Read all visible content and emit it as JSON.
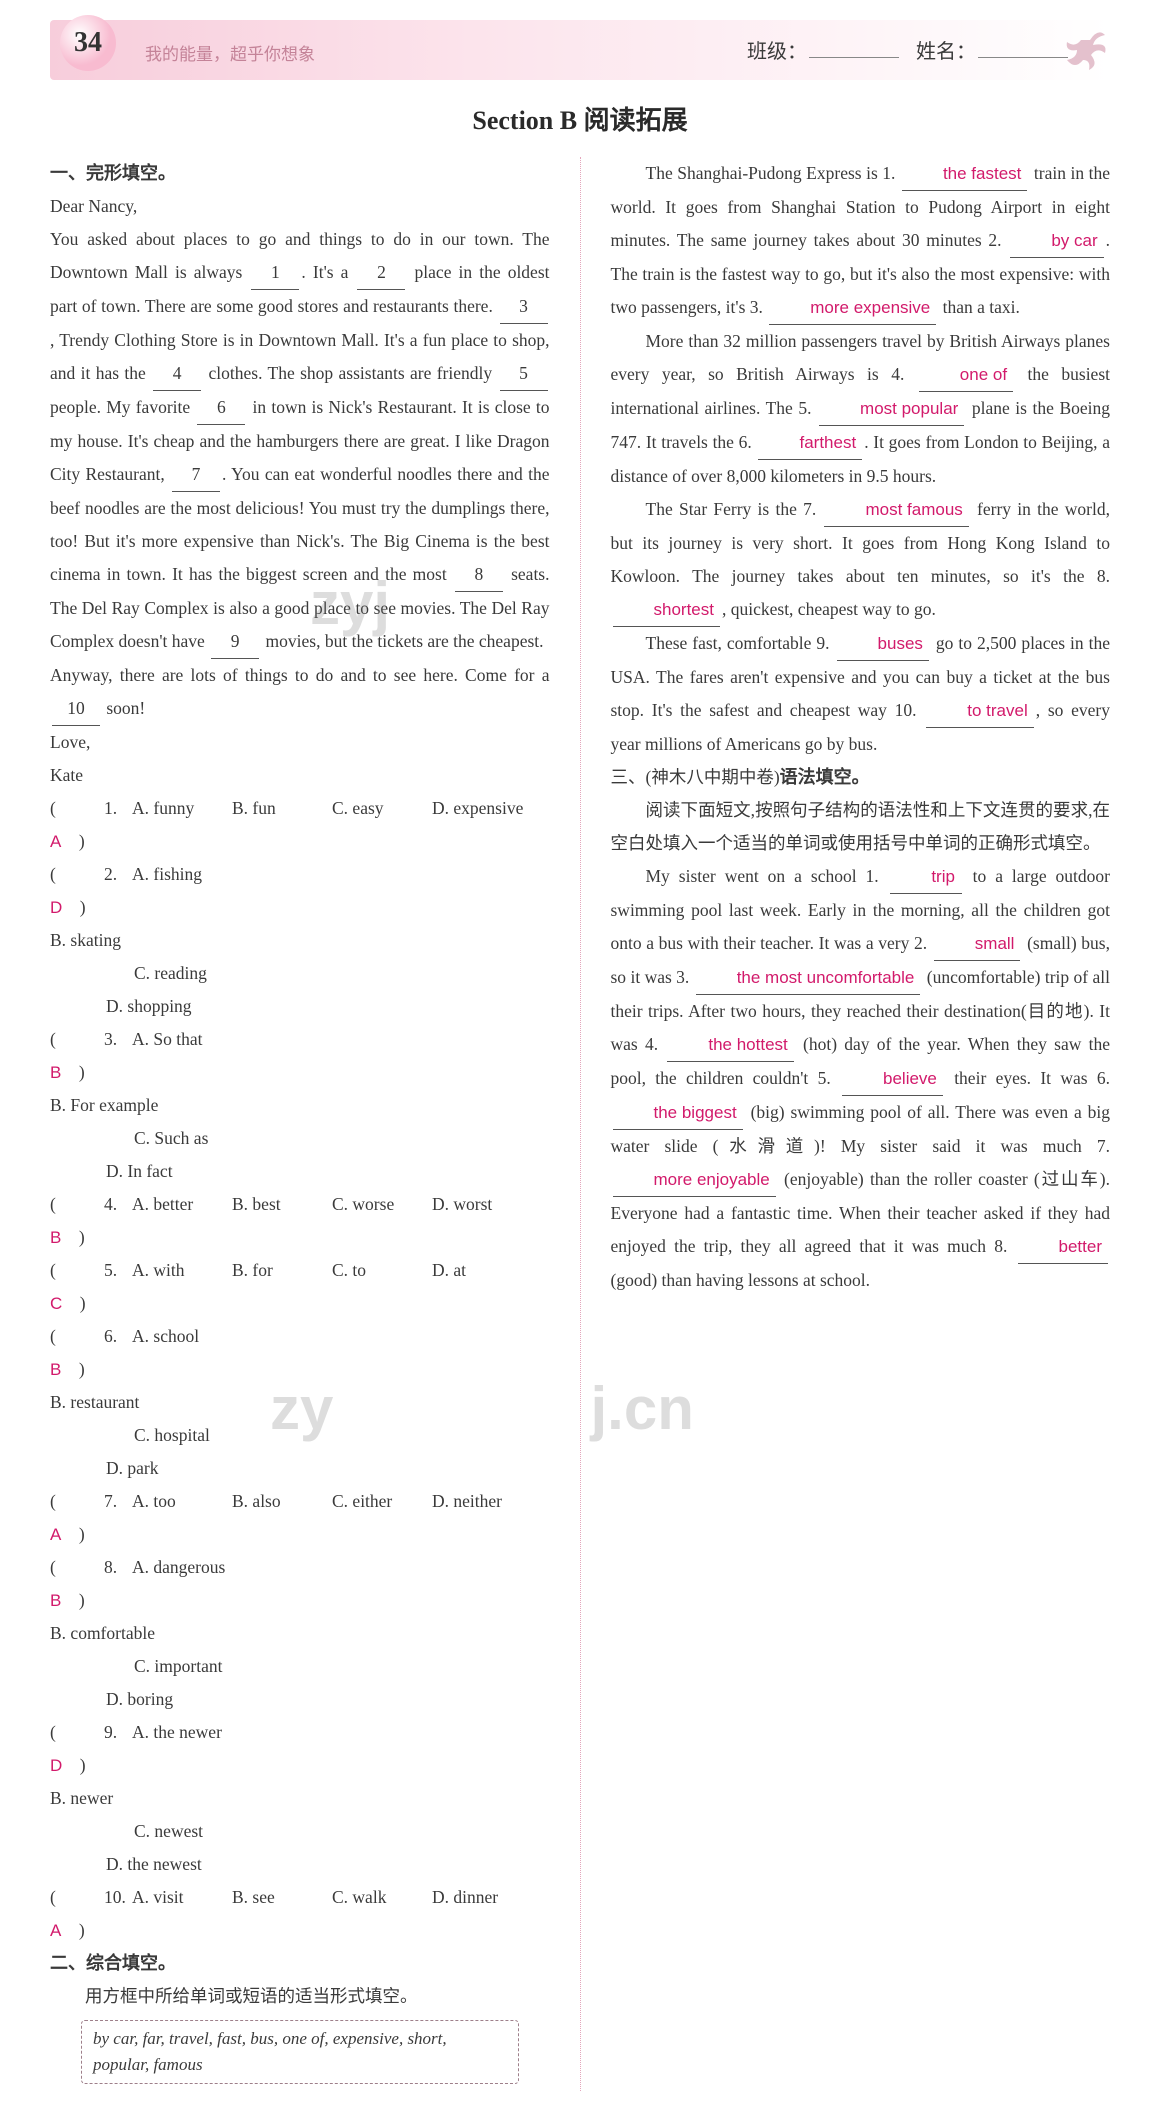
{
  "header": {
    "page_number": "34",
    "motto": "我的能量，超乎你想象",
    "class_label": "班级：",
    "name_label": "姓名："
  },
  "section_title": "Section B 阅读拓展",
  "headings": {
    "h1": "一、完形填空。",
    "h2": "二、综合填空。",
    "h2_sub": "用方框中所给单词或短语的适当形式填空。",
    "h3_prefix": "三、(神木八中期中卷)",
    "h3_bold": "语法填空。",
    "h3_sub1": "阅读下面短文,按照句子结构的语法性和上下文连贯的要求,在空白处填入一个适当的单词或使用括号中单词的正确形式填空。"
  },
  "cloze": {
    "greeting": "Dear Nancy,",
    "p1_a": "You asked about places to go and things to do in our town. The Downtown Mall is always ",
    "b1": "1",
    "p1_b": ". It's a ",
    "b2": "2",
    "p1_c": " place in the oldest part of town. There are some good stores and restaurants there. ",
    "b3": "3",
    "p1_d": ", Trendy Clothing Store is in Downtown Mall. It's a fun place to shop, and it has the ",
    "b4": "4",
    "p1_e": " clothes. The shop assistants are friendly ",
    "b5": "5",
    "p1_f": " people. My favorite ",
    "b6": "6",
    "p1_g": " in town is Nick's Restaurant. It is close to my house. It's cheap and the hamburgers there are great. I like Dragon City Restaurant, ",
    "b7": "7",
    "p1_h": ". You can eat wonderful noodles there and the beef noodles are the most delicious! You must try the dumplings there, too! But it's more expensive than Nick's. The Big Cinema is the best cinema in town. It has the biggest screen and the most ",
    "b8": "8",
    "p1_i": " seats. The Del Ray Complex is also a good place to see movies. The Del Ray Complex doesn't have ",
    "b9": "9",
    "p1_j": " movies, but the tickets are the cheapest.",
    "p2_a": "Anyway, there are lots of things to do and to see here. Come for a ",
    "b10": "10",
    "p2_b": " soon!",
    "love": "Love,",
    "sign": "Kate"
  },
  "choices": [
    {
      "n": "1",
      "ans": "A",
      "opts": [
        "A. funny",
        "B. fun",
        "C. easy",
        "D. expensive"
      ],
      "layout": "narrow"
    },
    {
      "n": "2",
      "ans": "D",
      "opts": [
        "A. fishing",
        "B. skating",
        "C. reading",
        "D. shopping"
      ],
      "layout": "wide"
    },
    {
      "n": "3",
      "ans": "B",
      "opts": [
        "A. So that",
        "B. For example",
        "C. Such as",
        "D. In fact"
      ],
      "layout": "wide"
    },
    {
      "n": "4",
      "ans": "B",
      "opts": [
        "A. better",
        "B. best",
        "C. worse",
        "D. worst"
      ],
      "layout": "narrow"
    },
    {
      "n": "5",
      "ans": "C",
      "opts": [
        "A. with",
        "B. for",
        "C. to",
        "D. at"
      ],
      "layout": "narrow"
    },
    {
      "n": "6",
      "ans": "B",
      "opts": [
        "A. school",
        "B. restaurant",
        "C. hospital",
        "D. park"
      ],
      "layout": "wide"
    },
    {
      "n": "7",
      "ans": "A",
      "opts": [
        "A. too",
        "B. also",
        "C. either",
        "D. neither"
      ],
      "layout": "narrow"
    },
    {
      "n": "8",
      "ans": "B",
      "opts": [
        "A. dangerous",
        "B. comfortable",
        "C. important",
        "D. boring"
      ],
      "layout": "wide"
    },
    {
      "n": "9",
      "ans": "D",
      "opts": [
        "A. the newer",
        "B. newer",
        "C. newest",
        "D. the newest"
      ],
      "layout": "wide"
    },
    {
      "n": "10",
      "ans": "A",
      "opts": [
        "A. visit",
        "B. see",
        "C. walk",
        "D. dinner"
      ],
      "layout": "narrow"
    }
  ],
  "word_box": "by car, far, travel, fast, bus, one of, expensive, short, popular, famous",
  "fill2": {
    "p1_a": "The Shanghai-Pudong Express is 1. ",
    "a1": "the fastest",
    "p1_b": " train in the world. It goes from Shanghai Station to Pudong Airport in eight minutes. The same journey takes about 30 minutes 2. ",
    "a2": "by car",
    "p1_c": ". The train is the fastest way to go, but it's also the most expensive: with two passengers, it's 3. ",
    "a3": "more expensive",
    "p1_d": " than a taxi.",
    "p2_a": "More than 32 million passengers travel by British Airways planes every year, so British Airways is 4. ",
    "a4": "one of",
    "p2_b": " the busiest international airlines. The 5. ",
    "a5": "most popular",
    "p2_c": " plane is the Boeing 747. It travels the 6. ",
    "a6": "farthest",
    "p2_d": ". It goes from London to Beijing, a distance of over 8,000 kilometers in 9.5 hours.",
    "p3_a": "The Star Ferry is the 7. ",
    "a7": "most famous",
    "p3_b": " ferry in the world, but its journey is very short. It goes from Hong Kong Island to Kowloon. The journey takes about ten minutes, so it's the 8. ",
    "a8": "shortest",
    "p3_c": ", quickest, cheapest way to go.",
    "p4_a": "These fast, comfortable 9. ",
    "a9": "buses",
    "p4_b": " go to 2,500 places in the USA. The fares aren't expensive and you can buy a ticket at the bus stop. It's the safest and cheapest way 10. ",
    "a10": "to travel",
    "p4_c": ", so every year millions of Americans go by bus."
  },
  "fill3": {
    "p1_a": "My sister went on a school 1. ",
    "a1": "trip",
    "p1_b": " to a large outdoor swimming pool last week. Early in the morning, all the children got onto a bus with their teacher. It was a very 2. ",
    "a2": "small",
    "p1_c": " (small) bus, so it was 3. ",
    "a3": "the most uncomfortable",
    "p1_d": " (uncomfortable) trip of all their trips. After two hours, they reached their destination(目的地). It was 4. ",
    "a4": "the hottest",
    "p1_e": " (hot) day of the year. When they saw the pool, the children couldn't 5. ",
    "a5": "believe",
    "p1_f": " their eyes. It was 6. ",
    "a6": "the biggest",
    "p1_g": " (big) swimming pool of all. There was even a big water slide (水滑道)! My sister said it was much 7. ",
    "a7": "more enjoyable",
    "p1_h": " (enjoyable) than the roller coaster (过山车). Everyone had a fantastic time. When their teacher asked if they had enjoyed the trip, they all agreed that it was much 8. ",
    "a8": "better",
    "p1_i": " (good) than having lessons at school."
  },
  "colors": {
    "answer_color": "#d21a6b",
    "header_pink": "#f7cddb",
    "motto_color": "#c48398",
    "divider_color": "#e4a6bc",
    "text_color": "#3a3a3a"
  }
}
